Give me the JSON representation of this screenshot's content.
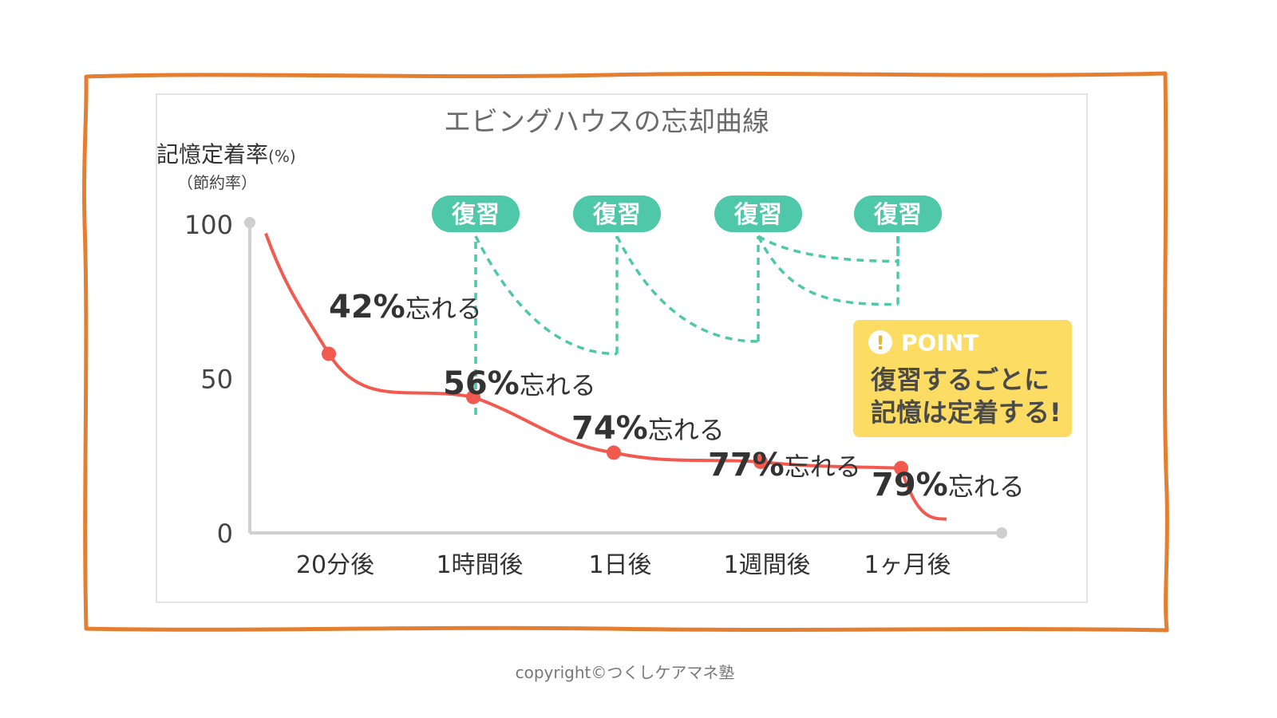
{
  "chart_data": {
    "type": "line",
    "title": "エビングハウスの忘却曲線",
    "ylabel": "記憶定着率",
    "ylabel_unit": "(%)",
    "ylabel_sub": "（節約率）",
    "ylim": [
      0,
      100
    ],
    "yticks": [
      "100",
      "50",
      "0"
    ],
    "categories": [
      "20分後",
      "1時間後",
      "1日後",
      "1週間後",
      "1ヶ月後"
    ],
    "values": [
      58,
      44,
      26,
      23,
      21
    ],
    "forget_percent": [
      "42%",
      "56%",
      "74%",
      "77%",
      "79%"
    ],
    "forget_suffix": "忘れる",
    "review_label": "復習",
    "review_values": [
      [
        100,
        58
      ],
      [
        100,
        62
      ],
      [
        100,
        74
      ],
      [
        100,
        88
      ]
    ],
    "point_heading": "POINT",
    "point_icon": "exclamation-icon",
    "point_lines": [
      "復習するごとに",
      "記憶は定着する!"
    ],
    "colors": {
      "curve": "#f2594f",
      "review": "#4ec8a8",
      "point": "#fcdc63",
      "frame": "#e47f32"
    }
  },
  "footer": {
    "copyright": "copyright©つくしケアマネ塾"
  }
}
